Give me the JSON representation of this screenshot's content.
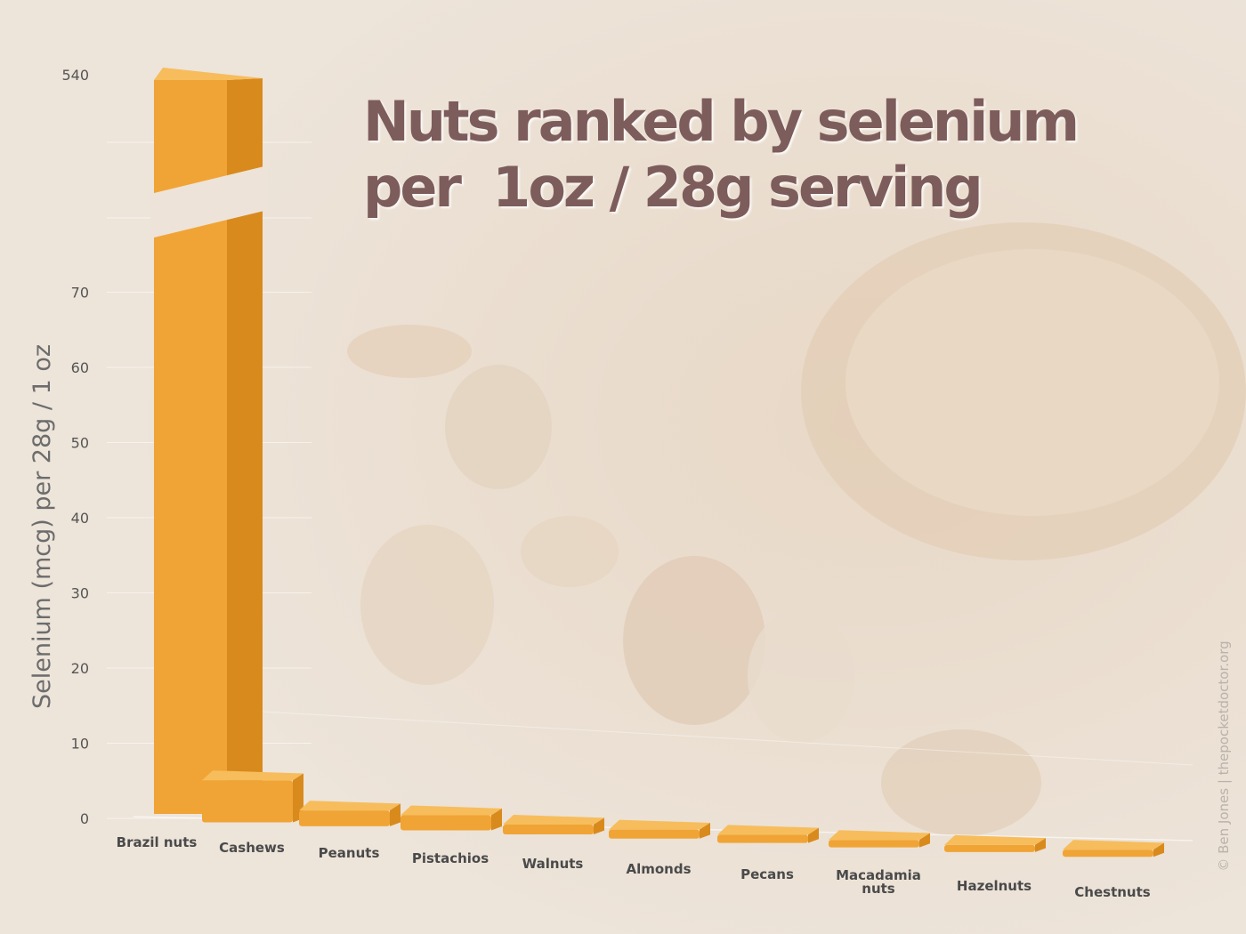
{
  "chart_data": {
    "type": "bar",
    "title_lines": [
      "Nuts ranked by selenium",
      "per  1oz / 28g serving"
    ],
    "ylabel": "Selenium (mcg) per 28g / 1 oz",
    "xlabel": "",
    "categories": [
      "Brazil nuts",
      "Cashews",
      "Peanuts",
      "Pistachios",
      "Walnuts",
      "Almonds",
      "Pecans",
      "Macadamia nuts",
      "Hazelnuts",
      "Chestnuts"
    ],
    "values": [
      540,
      5.6,
      2.1,
      2.0,
      1.3,
      1.2,
      1.1,
      1.0,
      0.7,
      0.4
    ],
    "yticks": [
      "0",
      "10",
      "20",
      "30",
      "40",
      "50",
      "60",
      "70",
      "540"
    ],
    "ylim": [
      0,
      75
    ],
    "axis_break": true,
    "grid": true,
    "bar_color": "#f0a435",
    "title_color": "#7d5c5c"
  },
  "watermark": "© Ben Jones | thepocketdoctor.org",
  "colors": {
    "bar": "#f0a435",
    "bar_side": "#d98a1d",
    "bar_top": "#f7bd5c",
    "title": "#7d5c5c"
  }
}
